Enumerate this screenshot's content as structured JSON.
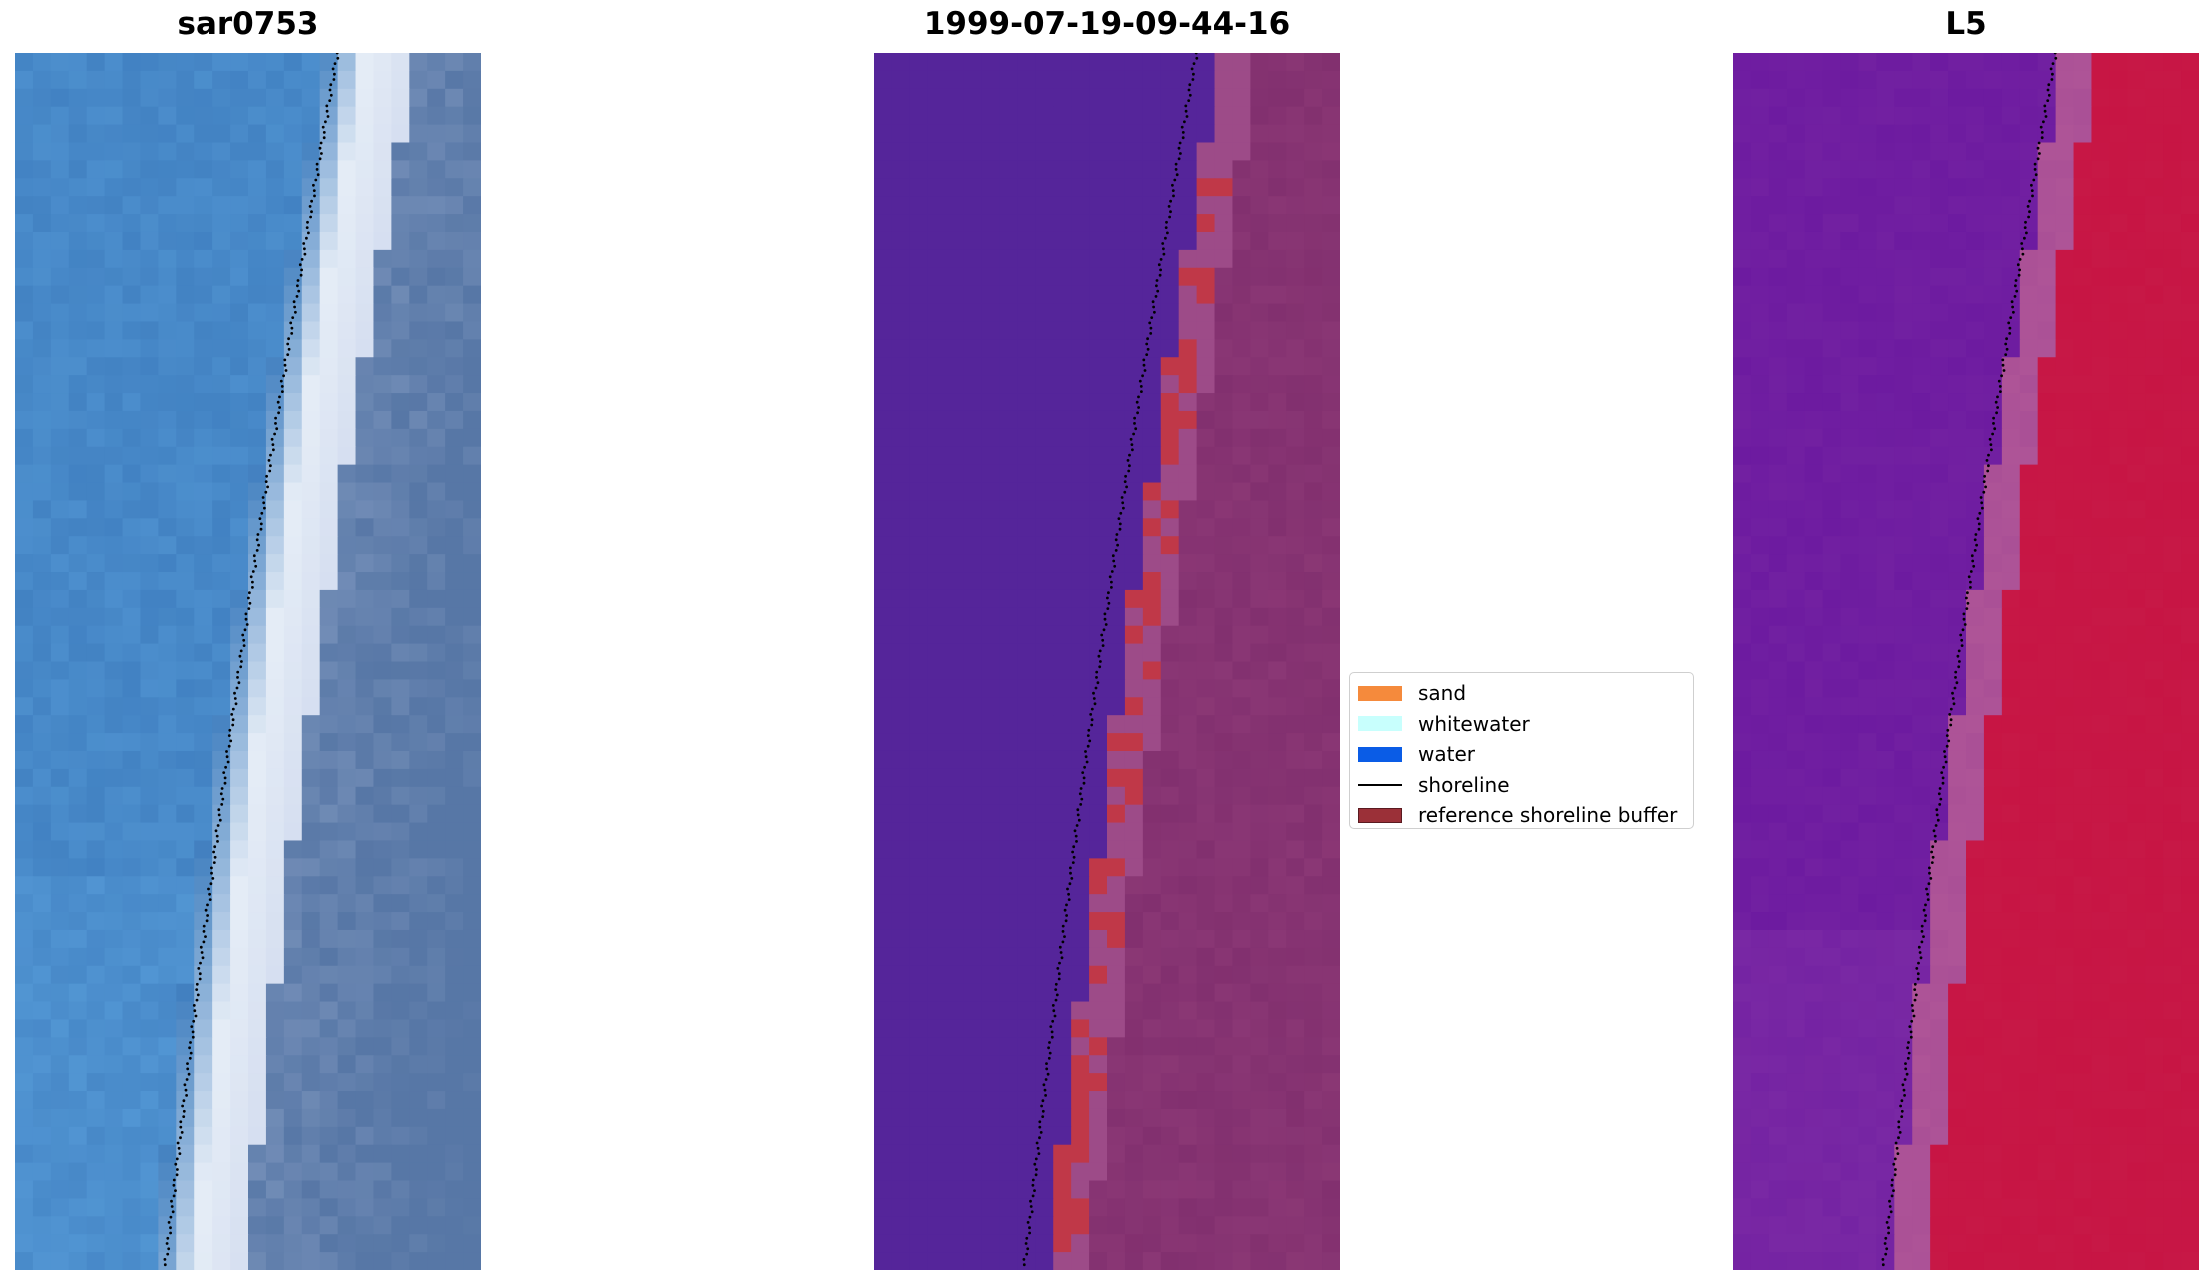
{
  "panels": [
    {
      "title": "sar0753"
    },
    {
      "title": "1999-07-19-09-44-16"
    },
    {
      "title": "L5"
    }
  ],
  "legend": {
    "items": [
      {
        "label": "sand",
        "color": "#f58a3c",
        "type": "patch"
      },
      {
        "label": "whitewater",
        "color": "#c8fffd",
        "type": "patch"
      },
      {
        "label": "water",
        "color": "#0a5ce6",
        "type": "patch"
      },
      {
        "label": "shoreline",
        "color": "#000000",
        "type": "line"
      },
      {
        "label": "reference shoreline buffer",
        "color": "#9b3038",
        "type": "patch"
      }
    ]
  },
  "colors": {
    "water_rgb": "#3f7ebf",
    "surf_rgb": "#e4ecf6",
    "land_rgb": "#5777a6",
    "classified_water": "#55259a",
    "classified_land": "#82306f",
    "buffer": "#c03848",
    "mndwi_low": "#6d1ba0",
    "mndwi_high": "#c71544"
  }
}
